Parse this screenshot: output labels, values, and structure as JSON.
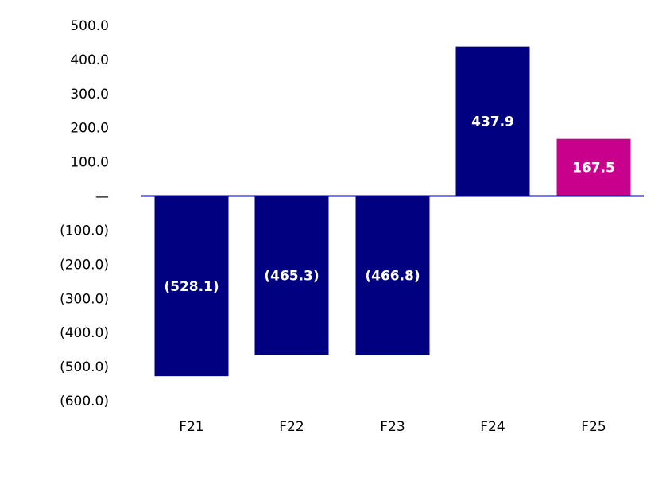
{
  "chart_data": {
    "type": "bar",
    "title": "",
    "xlabel": "",
    "ylabel": "",
    "categories": [
      "F21",
      "F22",
      "F23",
      "F24",
      "F25"
    ],
    "values": [
      -528.1,
      -465.3,
      -466.8,
      437.9,
      167.5
    ],
    "data_labels": [
      "(528.1)",
      "(465.3)",
      "(466.8)",
      "437.9",
      "167.5"
    ],
    "bar_colors": [
      "#000080",
      "#000080",
      "#000080",
      "#000080",
      "#C8008C"
    ],
    "zero_line_color": "#000080",
    "ylim": [
      -600,
      500
    ],
    "y_ticks": [
      500,
      400,
      300,
      200,
      100,
      0,
      -100,
      -200,
      -300,
      -400,
      -500,
      -600
    ],
    "y_tick_labels": [
      "500.0",
      "400.0",
      "300.0",
      "200.0",
      "100.0",
      "—",
      "(100.0)",
      "(200.0)",
      "(300.0)",
      "(400.0)",
      "(500.0)",
      "(600.0)"
    ],
    "grid": false,
    "legend": "none"
  }
}
